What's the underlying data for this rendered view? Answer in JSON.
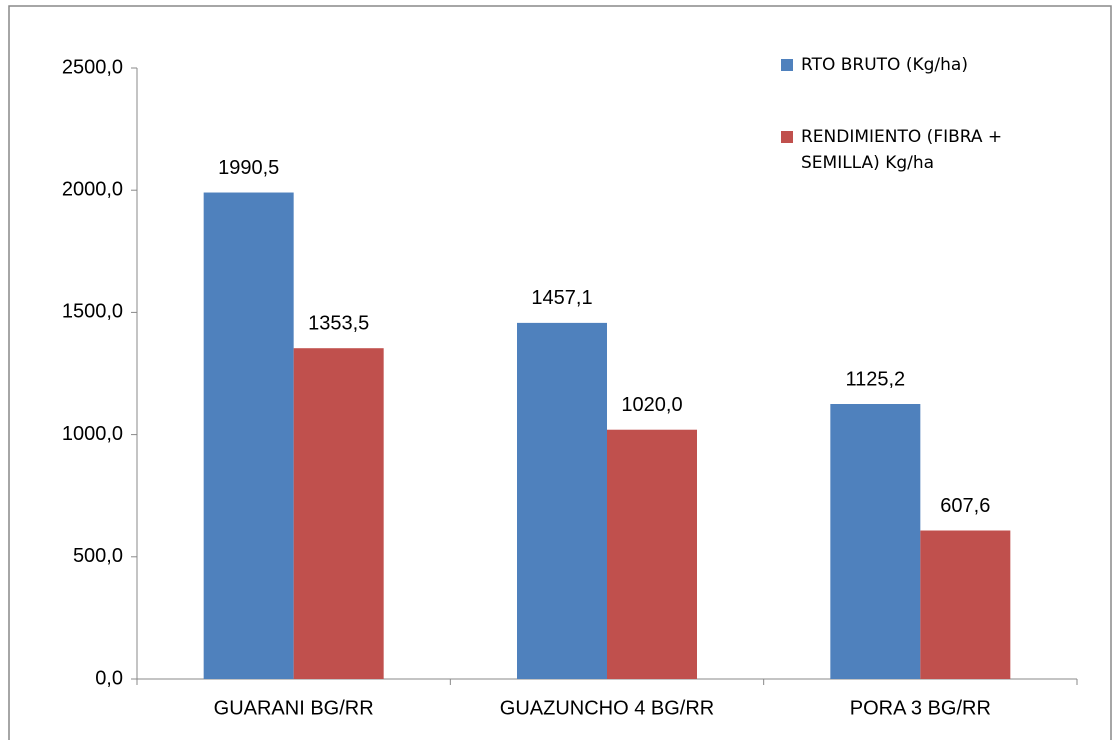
{
  "chart_data": {
    "type": "bar",
    "categories": [
      "GUARANI BG/RR",
      "GUAZUNCHO 4 BG/RR",
      "PORA 3 BG/RR"
    ],
    "series": [
      {
        "name": "RTO BRUTO (Kg/ha)",
        "color": "#4f81bd",
        "values": [
          1990.5,
          1457.1,
          1125.2
        ],
        "value_labels": [
          "1990,5",
          "1457,1",
          "1125,2"
        ]
      },
      {
        "name": "RENDIMIENTO (FIBRA + SEMILLA) Kg/ha",
        "color": "#c0504d",
        "values": [
          1353.5,
          1020.0,
          607.6
        ],
        "value_labels": [
          "1353,5",
          "1020,0",
          "607,6"
        ]
      }
    ],
    "ylim": [
      0,
      2500
    ],
    "yticks": [
      {
        "value": 0,
        "label": "0,0"
      },
      {
        "value": 500,
        "label": "500,0"
      },
      {
        "value": 1000,
        "label": "1000,0"
      },
      {
        "value": 1500,
        "label": "1500,0"
      },
      {
        "value": 2000,
        "label": "2000,0"
      },
      {
        "value": 2500,
        "label": "2500,0"
      }
    ],
    "grid": false,
    "legend": "top-right"
  }
}
